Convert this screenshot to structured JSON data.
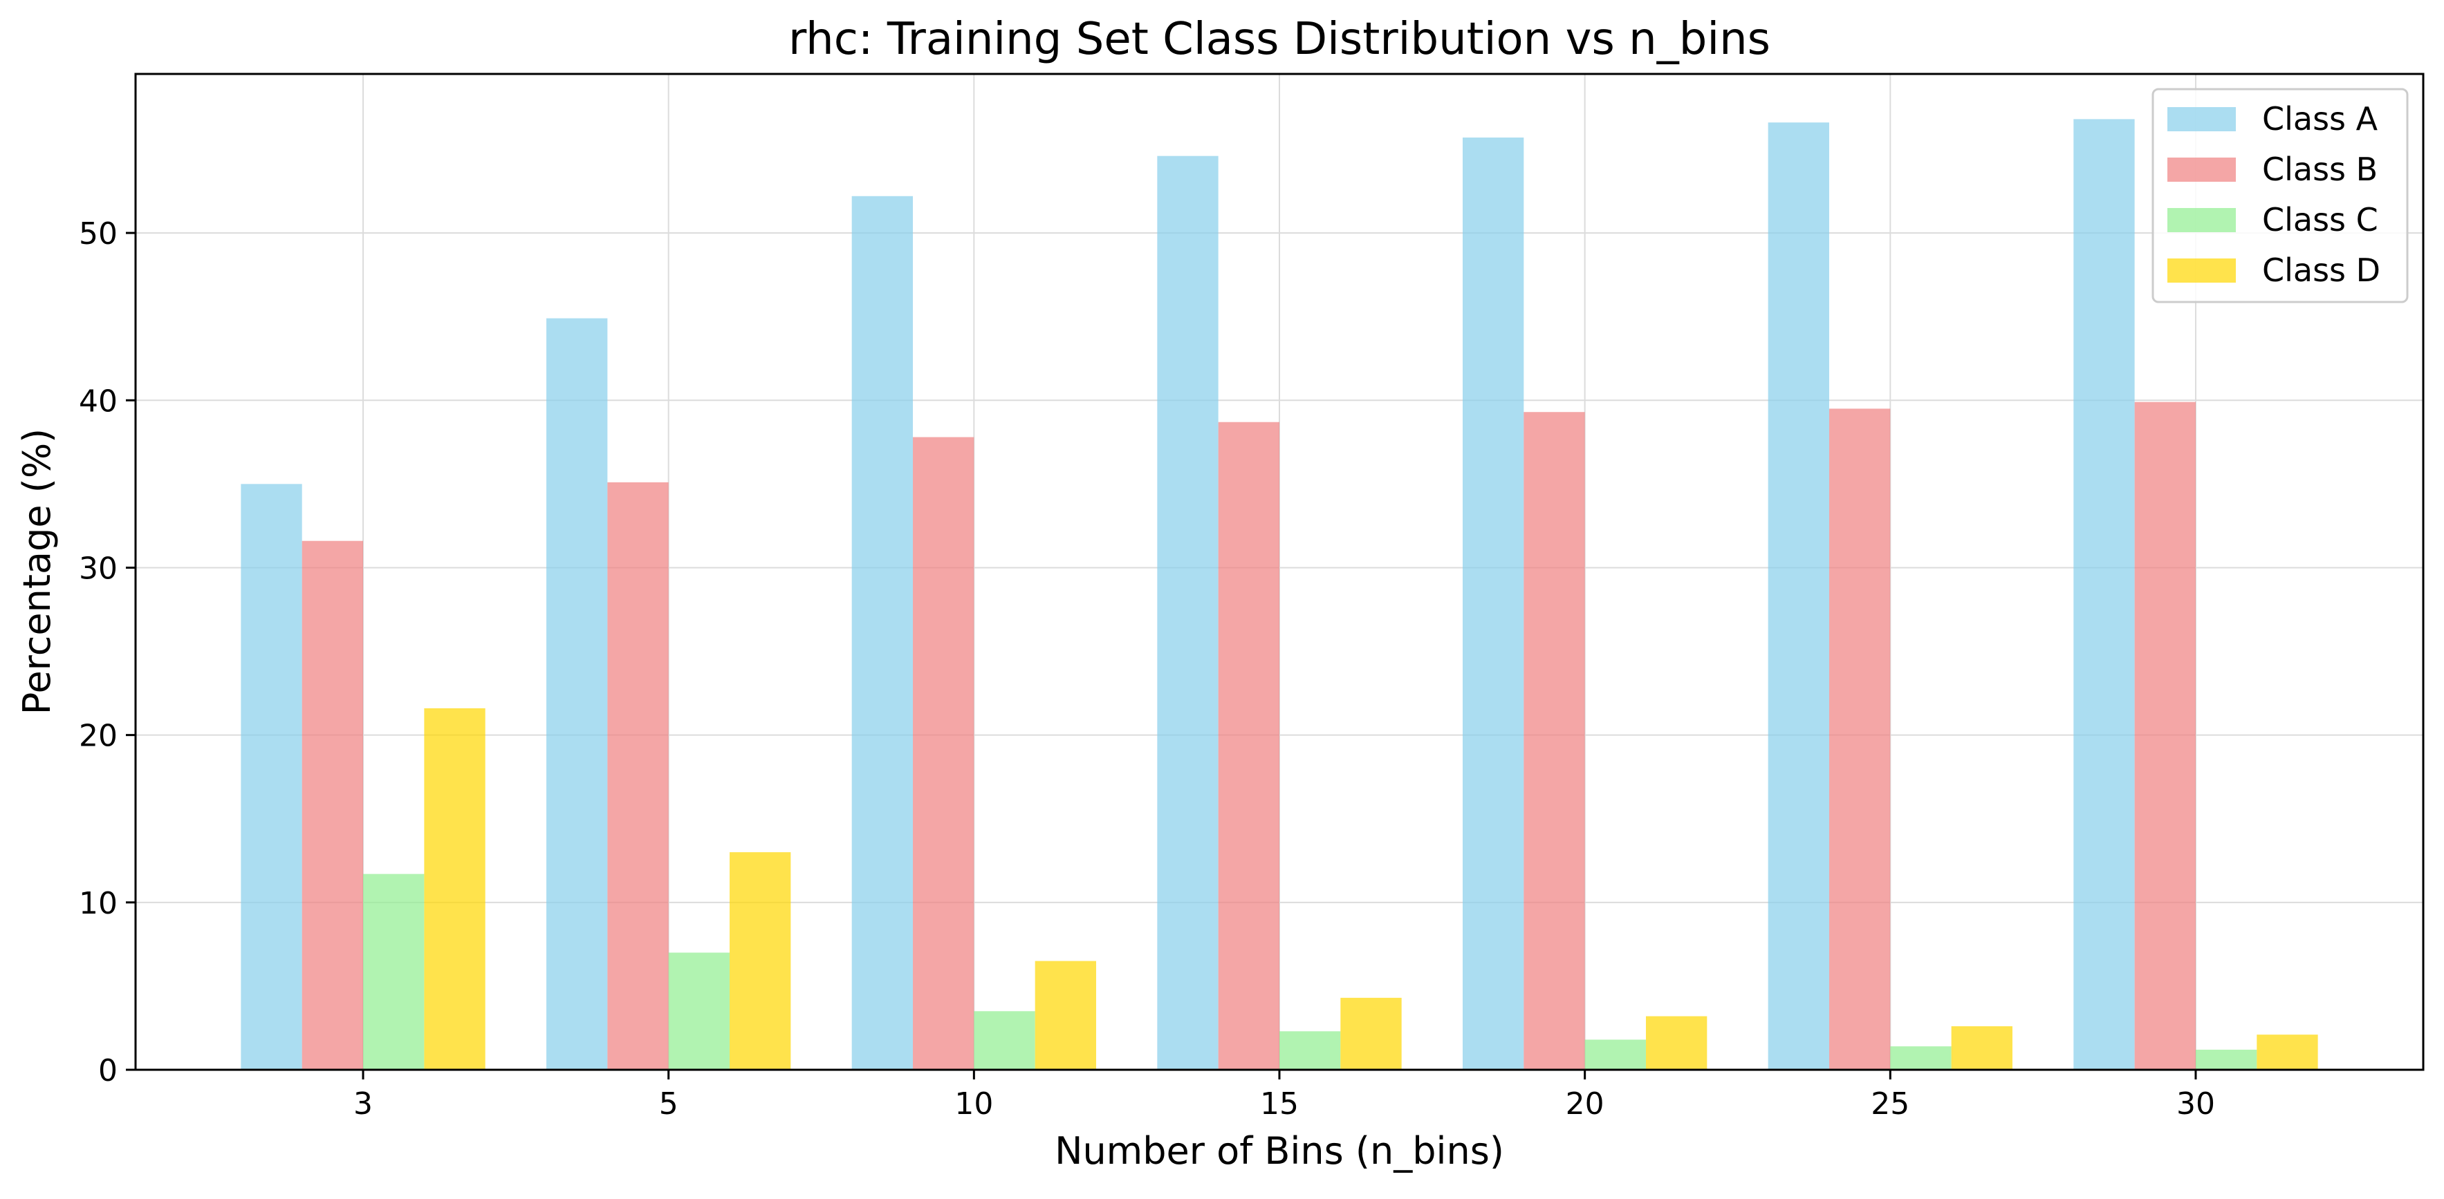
{
  "chart_data": {
    "type": "bar",
    "title": "rhc: Training Set Class Distribution vs n_bins",
    "xlabel": "Number of Bins (n_bins)",
    "ylabel": "Percentage (%)",
    "categories": [
      "3",
      "5",
      "10",
      "15",
      "20",
      "25",
      "30"
    ],
    "yticks": [
      0,
      10,
      20,
      30,
      40,
      50
    ],
    "ylim": [
      0,
      59.5
    ],
    "grid": true,
    "legend_position": "top-right",
    "series": [
      {
        "name": "Class A",
        "color": "#87ceeb",
        "values": [
          35.0,
          44.9,
          52.2,
          54.6,
          55.7,
          56.6,
          56.8
        ]
      },
      {
        "name": "Class B",
        "color": "#f08080",
        "values": [
          31.6,
          35.1,
          37.8,
          38.7,
          39.3,
          39.5,
          39.9
        ]
      },
      {
        "name": "Class C",
        "color": "#90ee90",
        "values": [
          11.7,
          7.0,
          3.5,
          2.3,
          1.8,
          1.4,
          1.2
        ]
      },
      {
        "name": "Class D",
        "color": "#ffd700",
        "values": [
          21.6,
          13.0,
          6.5,
          4.3,
          3.2,
          2.6,
          2.1
        ]
      }
    ]
  }
}
